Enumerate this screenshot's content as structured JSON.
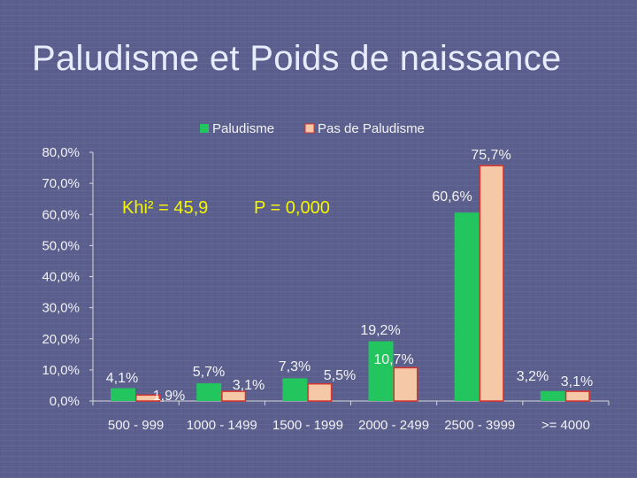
{
  "slide": {
    "title": "Paludisme et Poids de naissance"
  },
  "colors": {
    "paludisme": "#22c55e",
    "pas_de_paludisme": "#f5c9a8",
    "pas_de_paludisme_border": "#d9342b",
    "axis_text": "#f2f2f2",
    "label_text": "#f2f2f2",
    "annotation_text": "#f5f500"
  },
  "chart_data": {
    "type": "bar",
    "title": "",
    "xlabel": "",
    "ylabel": "",
    "categories": [
      "500 - 999",
      "1000 - 1499",
      "1500 - 1999",
      "2000 - 2499",
      "2500 - 3999",
      ">= 4000"
    ],
    "series": [
      {
        "name": "Paludisme",
        "values": [
          4.1,
          5.7,
          7.3,
          19.2,
          60.6,
          3.2
        ]
      },
      {
        "name": "Pas de Paludisme",
        "values": [
          1.9,
          3.1,
          5.5,
          10.7,
          75.7,
          3.1
        ]
      }
    ],
    "data_labels": [
      [
        "4,1%",
        "5,7%",
        "7,3%",
        "19,2%",
        "60,6%",
        "3,2%"
      ],
      [
        "1,9%",
        "3,1%",
        "5,5%",
        "10,7%",
        "75,7%",
        "3,1%"
      ]
    ],
    "ylim": [
      0,
      80
    ],
    "y_ticks": [
      0,
      10,
      20,
      30,
      40,
      50,
      60,
      70,
      80
    ],
    "y_tick_labels": [
      "0,0%",
      "10,0%",
      "20,0%",
      "30,0%",
      "40,0%",
      "50,0%",
      "60,0%",
      "70,0%",
      "80,0%"
    ],
    "legend_position": "top",
    "grid": false,
    "annotation": {
      "khi": "Khi² = 45,9",
      "p": "P = 0,000"
    }
  }
}
